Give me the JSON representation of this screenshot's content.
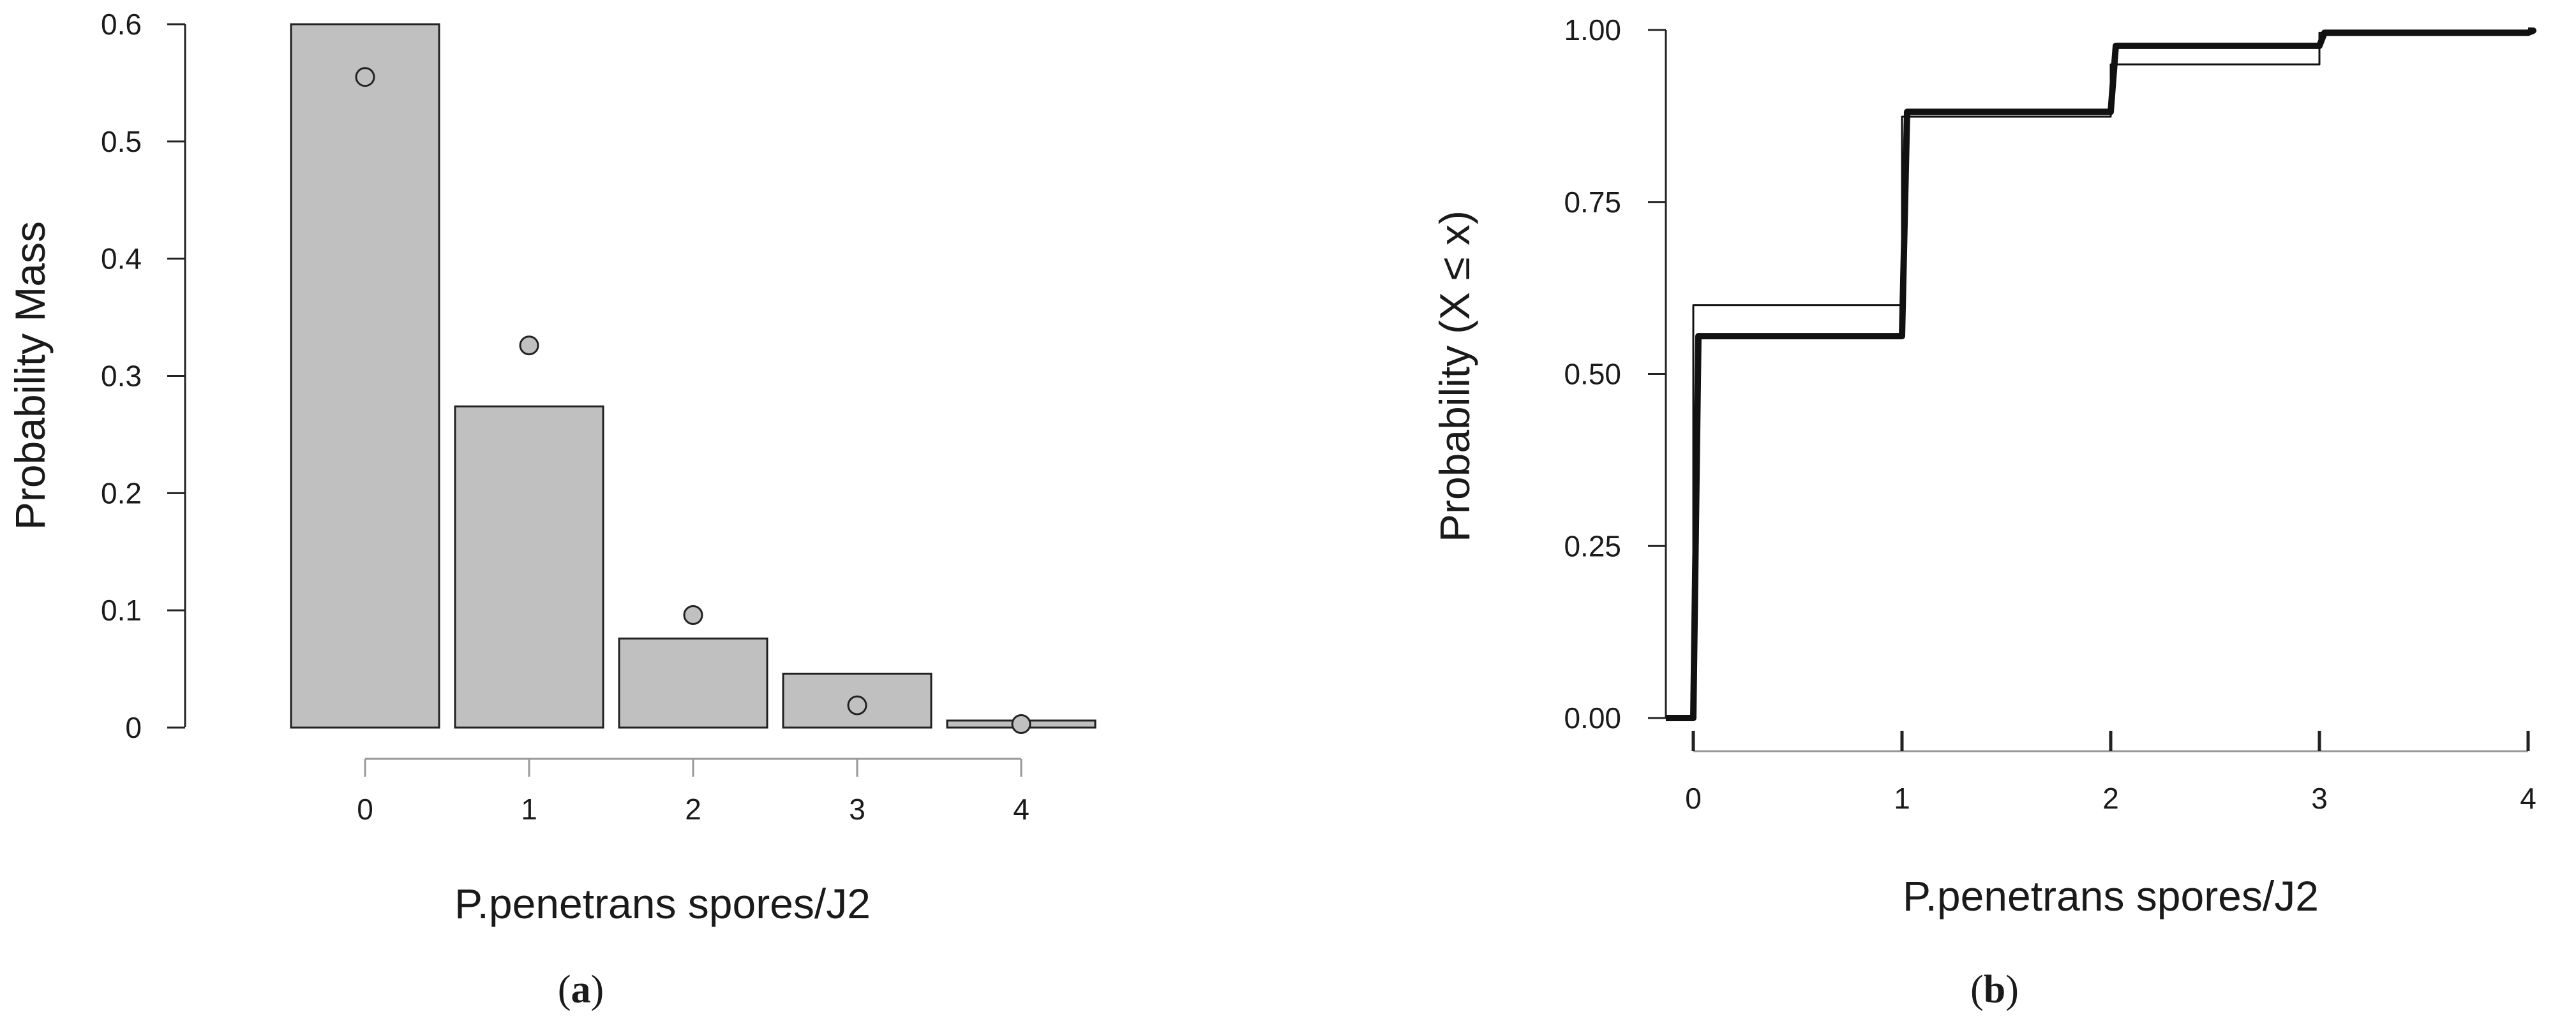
{
  "chart_data": [
    {
      "type": "bar",
      "panel": "a",
      "categories": [
        "0",
        "1",
        "2",
        "3",
        "4"
      ],
      "series": [
        {
          "kind": "bars",
          "values": [
            0.6,
            0.274,
            0.076,
            0.046,
            0.006
          ]
        },
        {
          "kind": "points",
          "values": [
            0.555,
            0.326,
            0.096,
            0.019,
            0.003
          ]
        }
      ],
      "xlabel": "P.penetrans spores/J2",
      "ylabel": "Probability Mass",
      "ylim": [
        0,
        0.6
      ],
      "yticks": [
        "0",
        "0.1",
        "0.2",
        "0.3",
        "0.4",
        "0.5",
        "0.6"
      ],
      "ytick_values": [
        0,
        0.1,
        0.2,
        0.3,
        0.4,
        0.5,
        0.6
      ],
      "colors": {
        "bar_fill": "#c0c0c0",
        "point_fill": "#c0c0c0",
        "outline": "#222222"
      },
      "grid": false,
      "label_prefix": "(",
      "label_letter": "a",
      "label_suffix": ")"
    },
    {
      "type": "line",
      "panel": "b",
      "xlim": [
        0,
        4
      ],
      "xticks": [
        "0",
        "1",
        "2",
        "3",
        "4"
      ],
      "xtick_values": [
        0,
        1,
        2,
        3,
        4
      ],
      "series": [
        {
          "kind": "empirical-step",
          "style": "thin",
          "x": [
            0,
            1,
            2,
            3,
            4
          ],
          "y": [
            0.6,
            0.874,
            0.95,
            0.996,
            1.0
          ]
        },
        {
          "kind": "fitted-step",
          "style": "thick",
          "x": [
            0,
            1,
            2,
            3,
            4
          ],
          "y": [
            0.555,
            0.881,
            0.977,
            0.996,
            0.999
          ]
        }
      ],
      "pre_zero_y": 0,
      "xlabel": "P.penetrans spores/J2",
      "ylabel_main": "Probability",
      "ylabel_paren": "(X ≤ x)",
      "ylim": [
        0,
        1
      ],
      "yticks": [
        "0.00",
        "0.25",
        "0.50",
        "0.75",
        "1.00"
      ],
      "ytick_values": [
        0,
        0.25,
        0.5,
        0.75,
        1.0
      ],
      "colors": {
        "line": "#111111",
        "x_axis": "#999999"
      },
      "grid": false,
      "label_prefix": "(",
      "label_letter": "b",
      "label_suffix": ")"
    }
  ]
}
